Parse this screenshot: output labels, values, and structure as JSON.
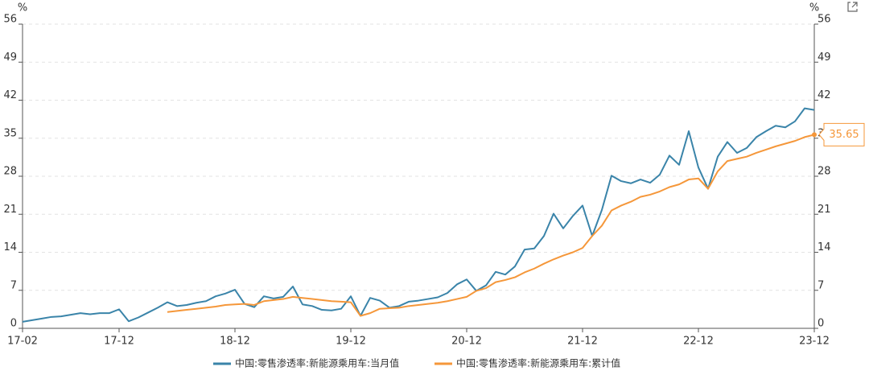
{
  "chart_data": {
    "type": "line",
    "y_label": "%",
    "y2_label": "%",
    "categories": [
      "17-02",
      null,
      null,
      null,
      null,
      null,
      null,
      null,
      null,
      null,
      "17-12",
      null,
      null,
      null,
      null,
      null,
      null,
      null,
      null,
      null,
      null,
      null,
      "18-12",
      null,
      null,
      null,
      null,
      null,
      null,
      null,
      null,
      null,
      null,
      null,
      "19-12",
      null,
      null,
      null,
      null,
      null,
      null,
      null,
      null,
      null,
      null,
      null,
      "20-12",
      null,
      null,
      null,
      null,
      null,
      null,
      null,
      null,
      null,
      null,
      null,
      "21-12",
      null,
      null,
      null,
      null,
      null,
      null,
      null,
      null,
      null,
      null,
      null,
      "22-12",
      null,
      null,
      null,
      null,
      null,
      null,
      null,
      null,
      null,
      null,
      null,
      "23-12"
    ],
    "series": [
      {
        "name": "中国:零售渗透率:新能源乘用车:当月值",
        "color": "#3a84a9",
        "values": [
          1.2,
          1.5,
          1.8,
          2.1,
          2.2,
          2.5,
          2.8,
          2.6,
          2.8,
          2.8,
          3.5,
          1.3,
          2.0,
          2.9,
          3.8,
          4.8,
          4.1,
          4.3,
          4.7,
          5.0,
          5.9,
          6.4,
          7.1,
          4.5,
          3.9,
          5.9,
          5.5,
          5.8,
          7.7,
          4.4,
          4.1,
          3.4,
          3.3,
          3.6,
          5.9,
          2.3,
          5.6,
          5.1,
          3.8,
          4.1,
          4.9,
          5.1,
          5.4,
          5.7,
          6.5,
          8.1,
          9.0,
          6.9,
          7.9,
          10.4,
          9.9,
          11.4,
          14.5,
          14.7,
          17.0,
          21.1,
          18.4,
          20.7,
          22.6,
          17.0,
          21.8,
          28.1,
          27.1,
          26.7,
          27.4,
          26.8,
          28.3,
          31.8,
          30.1,
          36.3,
          29.6,
          25.7,
          31.6,
          34.3,
          32.3,
          33.2,
          35.2,
          36.3,
          37.3,
          37.0,
          38.1,
          40.5,
          40.2
        ]
      },
      {
        "name": "中国:零售渗透率:新能源乘用车:累计值",
        "color": "#f5973a",
        "values": [
          null,
          null,
          null,
          null,
          null,
          null,
          null,
          null,
          null,
          null,
          null,
          null,
          null,
          null,
          null,
          3.0,
          3.2,
          3.4,
          3.6,
          3.8,
          4.0,
          4.3,
          4.4,
          4.5,
          4.3,
          5.0,
          5.2,
          5.4,
          5.8,
          5.6,
          5.4,
          5.2,
          5.0,
          4.9,
          4.8,
          2.3,
          2.8,
          3.6,
          3.7,
          3.8,
          4.1,
          4.3,
          4.5,
          4.7,
          5.0,
          5.4,
          5.8,
          6.9,
          7.4,
          8.5,
          8.9,
          9.4,
          10.3,
          11.0,
          11.9,
          12.7,
          13.4,
          14.0,
          14.8,
          17.0,
          18.9,
          21.7,
          22.6,
          23.3,
          24.2,
          24.6,
          25.2,
          26.0,
          26.5,
          27.4,
          27.6,
          25.7,
          28.9,
          30.8,
          31.2,
          31.6,
          32.3,
          32.9,
          33.5,
          34.0,
          34.5,
          35.2,
          35.65
        ]
      }
    ],
    "ylim": [
      0,
      56
    ],
    "yticks": [
      0,
      7,
      14,
      21,
      28,
      35,
      42,
      49,
      56
    ],
    "y2lim": [
      0,
      56
    ],
    "y2ticks": [
      0,
      7,
      14,
      21,
      28,
      35,
      42,
      49,
      56
    ],
    "grid": true,
    "legend": "bottom"
  }
}
